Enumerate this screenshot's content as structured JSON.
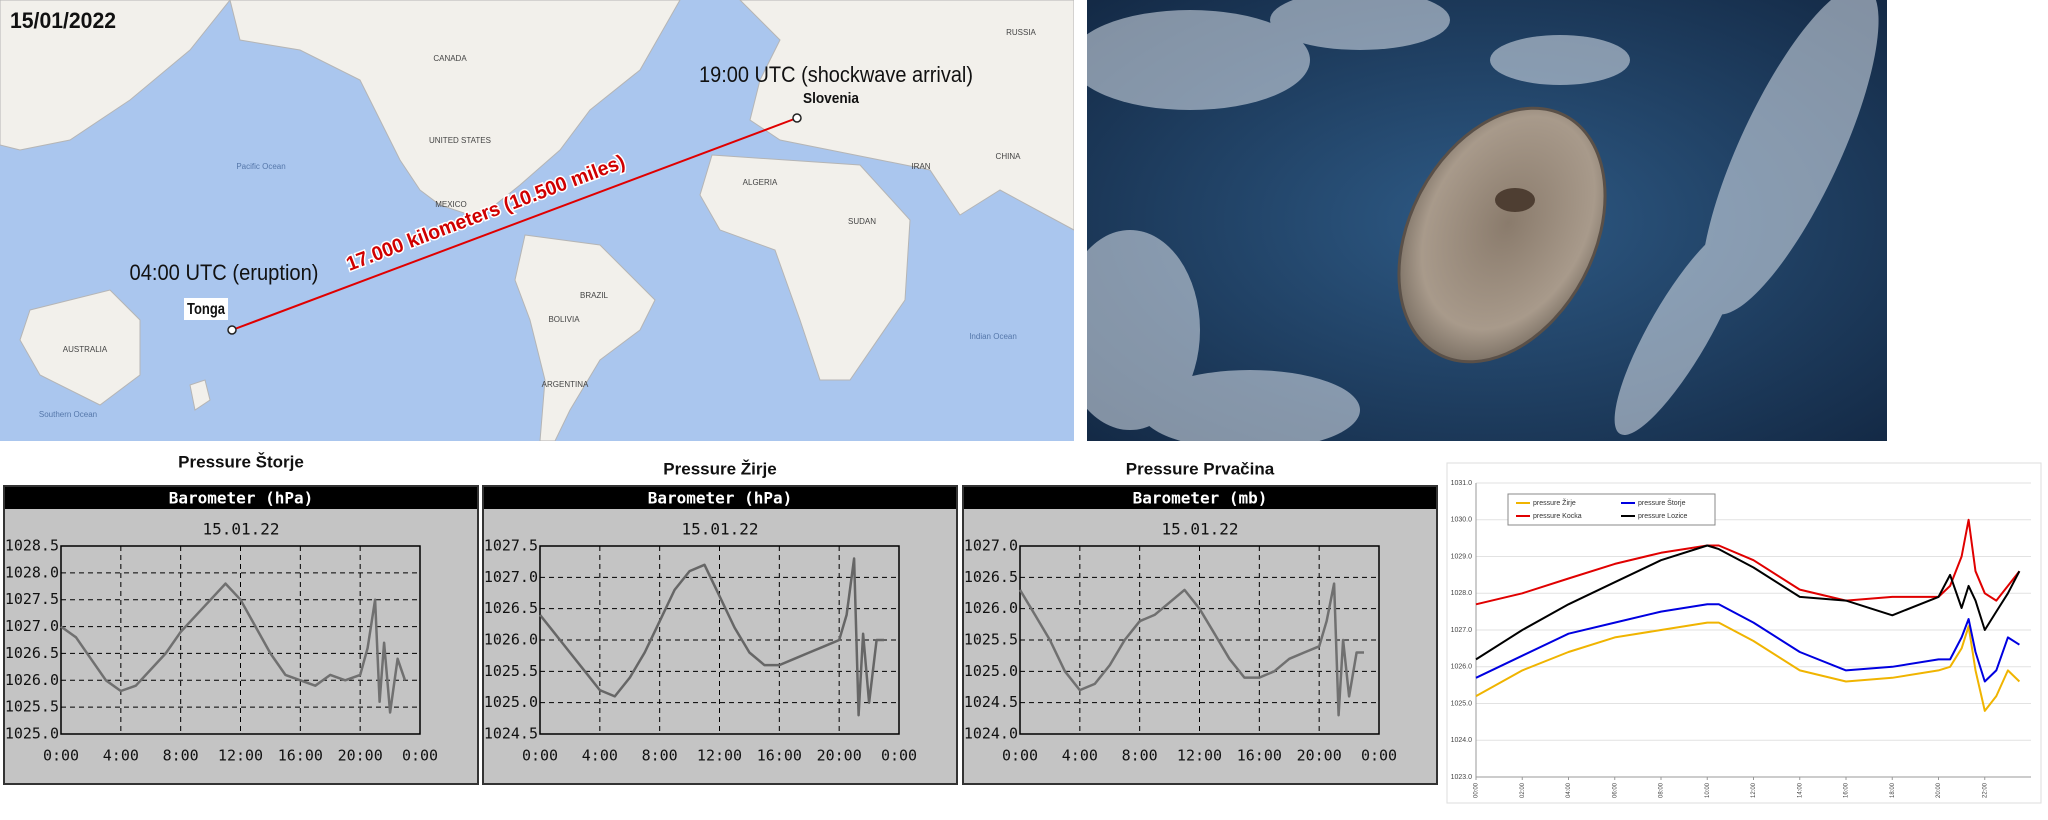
{
  "map": {
    "date": "15/01/2022",
    "arrival": "19:00 UTC (shockwave arrival)",
    "destination": "Slovenia",
    "distance": "17.000 kilometers (10.500 miles)",
    "eruption": "04:00 UTC (eruption)",
    "origin": "Tonga",
    "places": [
      "CANADA",
      "UNITED STATES",
      "MEXICO",
      "BRAZIL",
      "BOLIVIA",
      "ARGENTINA",
      "AUSTRALIA",
      "RUSSIA",
      "CHINA",
      "IRAN",
      "ALGERIA",
      "SUDAN",
      "Pacific Ocean",
      "Indian Ocean",
      "Southern Ocean"
    ]
  },
  "chart_data": [
    {
      "type": "line",
      "title": "Pressure Štorje",
      "subtitle": "Barometer (hPa)",
      "annotation": "15.01.22",
      "color": "#707070",
      "x": [
        0,
        1,
        2,
        3,
        4,
        5,
        6,
        7,
        8,
        9,
        10,
        11,
        12,
        13,
        14,
        15,
        16,
        17,
        18,
        19,
        20,
        20.5,
        21,
        21.3,
        21.6,
        22,
        22.5,
        23
      ],
      "values": [
        1027.0,
        1026.8,
        1026.4,
        1026.0,
        1025.8,
        1025.9,
        1026.2,
        1026.5,
        1026.9,
        1027.2,
        1027.5,
        1027.8,
        1027.5,
        1027.0,
        1026.5,
        1026.1,
        1026.0,
        1025.9,
        1026.1,
        1026.0,
        1026.1,
        1026.6,
        1027.5,
        1025.6,
        1026.7,
        1025.4,
        1026.4,
        1026.0
      ],
      "xlim": [
        0,
        24
      ],
      "xticks": [
        {
          "value": 0,
          "label": "0:00"
        },
        {
          "value": 4,
          "label": "4:00"
        },
        {
          "value": 8,
          "label": "8:00"
        },
        {
          "value": 12,
          "label": "12:00"
        },
        {
          "value": 16,
          "label": "16:00"
        },
        {
          "value": 20,
          "label": "20:00"
        },
        {
          "value": 24,
          "label": "0:00"
        }
      ],
      "ylim": [
        1025.0,
        1028.5
      ],
      "yticks": [
        {
          "value": 1025,
          "label": "1025.0"
        },
        1025.5,
        {
          "value": 1026,
          "label": "1026.0"
        },
        1026.5,
        {
          "value": 1027,
          "label": "1027.0"
        },
        1027.5,
        {
          "value": 1028,
          "label": "1028.0"
        },
        1028.5
      ],
      "grid": true
    },
    {
      "type": "line",
      "title": "Pressure Žirje",
      "subtitle": "Barometer (hPa)",
      "annotation": "15.01.22",
      "color": "#666666",
      "x": [
        0,
        1,
        2,
        3,
        4,
        5,
        6,
        7,
        8,
        9,
        10,
        11,
        12,
        13,
        14,
        15,
        16,
        17,
        18,
        19,
        20,
        20.5,
        21,
        21.3,
        21.6,
        22,
        22.5,
        23
      ],
      "values": [
        1026.4,
        1026.1,
        1025.8,
        1025.5,
        1025.2,
        1025.1,
        1025.4,
        1025.8,
        1026.3,
        1026.8,
        1027.1,
        1027.2,
        1026.7,
        1026.2,
        1025.8,
        1025.6,
        1025.6,
        1025.7,
        1025.8,
        1025.9,
        1026.0,
        1026.4,
        1027.3,
        1024.8,
        1026.1,
        1025.0,
        1026.0,
        1026.0
      ],
      "xlim": [
        0,
        24
      ],
      "xticks": [
        {
          "value": 0,
          "label": "0:00"
        },
        {
          "value": 4,
          "label": "4:00"
        },
        {
          "value": 8,
          "label": "8:00"
        },
        {
          "value": 12,
          "label": "12:00"
        },
        {
          "value": 16,
          "label": "16:00"
        },
        {
          "value": 20,
          "label": "20:00"
        },
        {
          "value": 24,
          "label": "0:00"
        }
      ],
      "ylim": [
        1024.5,
        1027.5
      ],
      "yticks": [
        1024.5,
        {
          "value": 1025,
          "label": "1025.0"
        },
        1025.5,
        {
          "value": 1026,
          "label": "1026.0"
        },
        1026.5,
        {
          "value": 1027,
          "label": "1027.0"
        },
        1027.5
      ],
      "grid": true
    },
    {
      "type": "line",
      "title": "Pressure Prvačina",
      "subtitle": "Barometer (mb)",
      "annotation": "15.01.22",
      "color": "#707070",
      "x": [
        0,
        1,
        2,
        3,
        4,
        5,
        6,
        7,
        8,
        9,
        10,
        11,
        12,
        13,
        14,
        15,
        16,
        17,
        18,
        19,
        20,
        20.5,
        21,
        21.3,
        21.6,
        22,
        22.5,
        23
      ],
      "values": [
        1026.3,
        1025.9,
        1025.5,
        1025.0,
        1024.7,
        1024.8,
        1025.1,
        1025.5,
        1025.8,
        1025.9,
        1026.1,
        1026.3,
        1026.0,
        1025.6,
        1025.2,
        1024.9,
        1024.9,
        1025.0,
        1025.2,
        1025.3,
        1025.4,
        1025.8,
        1026.4,
        1024.3,
        1025.5,
        1024.6,
        1025.3,
        1025.3
      ],
      "xlim": [
        0,
        24
      ],
      "xticks": [
        {
          "value": 0,
          "label": "0:00"
        },
        {
          "value": 4,
          "label": "4:00"
        },
        {
          "value": 8,
          "label": "8:00"
        },
        {
          "value": 12,
          "label": "12:00"
        },
        {
          "value": 16,
          "label": "16:00"
        },
        {
          "value": 20,
          "label": "20:00"
        },
        {
          "value": 24,
          "label": "0:00"
        }
      ],
      "ylim": [
        1024.0,
        1027.0
      ],
      "yticks": [
        {
          "value": 1024,
          "label": "1024.0"
        },
        1024.5,
        {
          "value": 1025,
          "label": "1025.0"
        },
        1025.5,
        {
          "value": 1026,
          "label": "1026.0"
        },
        1026.5,
        {
          "value": 1027,
          "label": "1027.0"
        }
      ],
      "grid": true
    },
    {
      "type": "line",
      "legend": "upper left",
      "grid": true,
      "x": [
        0,
        2,
        4,
        6,
        8,
        10,
        10.5,
        12,
        14,
        16,
        18,
        20,
        20.5,
        21,
        21.3,
        21.6,
        22,
        22.5,
        23,
        23.5
      ],
      "series": [
        {
          "name": "pressure Žirje",
          "color": "#f0b400",
          "values": [
            1025.2,
            1025.9,
            1026.4,
            1026.8,
            1027.0,
            1027.2,
            1027.2,
            1026.7,
            1025.9,
            1025.6,
            1025.7,
            1025.9,
            1026.0,
            1026.5,
            1027.1,
            1025.9,
            1024.8,
            1025.2,
            1025.9,
            1025.6
          ]
        },
        {
          "name": "pressure Štorje",
          "color": "#0000e0",
          "values": [
            1025.7,
            1026.3,
            1026.9,
            1027.2,
            1027.5,
            1027.7,
            1027.7,
            1027.2,
            1026.4,
            1025.9,
            1026.0,
            1026.2,
            1026.2,
            1026.8,
            1027.3,
            1026.4,
            1025.6,
            1025.9,
            1026.8,
            1026.6
          ]
        },
        {
          "name": "pressure Kocka",
          "color": "#e00000",
          "values": [
            1027.7,
            1028.0,
            1028.4,
            1028.8,
            1029.1,
            1029.3,
            1029.3,
            1028.9,
            1028.1,
            1027.8,
            1027.9,
            1027.9,
            1028.2,
            1029.0,
            1030.0,
            1028.6,
            1028.0,
            1027.8,
            1028.2,
            1028.6
          ]
        },
        {
          "name": "pressure Lozice",
          "color": "#000000",
          "values": [
            1026.2,
            1027.0,
            1027.7,
            1028.3,
            1028.9,
            1029.3,
            1029.2,
            1028.7,
            1027.9,
            1027.8,
            1027.4,
            1027.9,
            1028.5,
            1027.6,
            1028.2,
            1027.8,
            1027.0,
            1027.5,
            1028.0,
            1028.6
          ]
        }
      ],
      "xlim": [
        0,
        24
      ],
      "xticks": [
        {
          "value": 0,
          "label": "00:00"
        },
        {
          "value": 2,
          "label": "02:00"
        },
        {
          "value": 4,
          "label": "04:00"
        },
        {
          "value": 6,
          "label": "06:00"
        },
        {
          "value": 8,
          "label": "08:00"
        },
        {
          "value": 10,
          "label": "10:00"
        },
        {
          "value": 12,
          "label": "12:00"
        },
        {
          "value": 14,
          "label": "14:00"
        },
        {
          "value": 16,
          "label": "16:00"
        },
        {
          "value": 18,
          "label": "18:00"
        },
        {
          "value": 20,
          "label": "20:00"
        },
        {
          "value": 22,
          "label": "22:00"
        }
      ],
      "ylim": [
        1023.0,
        1031.0
      ],
      "yticks": [
        {
          "value": 1023,
          "label": "1023.0"
        },
        {
          "value": 1024,
          "label": "1024.0"
        },
        {
          "value": 1025,
          "label": "1025.0"
        },
        {
          "value": 1026,
          "label": "1026.0"
        },
        {
          "value": 1027,
          "label": "1027.0"
        },
        {
          "value": 1028,
          "label": "1028.0"
        },
        {
          "value": 1029,
          "label": "1029.0"
        },
        {
          "value": 1030,
          "label": "1030.0"
        },
        {
          "value": 1031,
          "label": "1031.0"
        }
      ]
    }
  ]
}
